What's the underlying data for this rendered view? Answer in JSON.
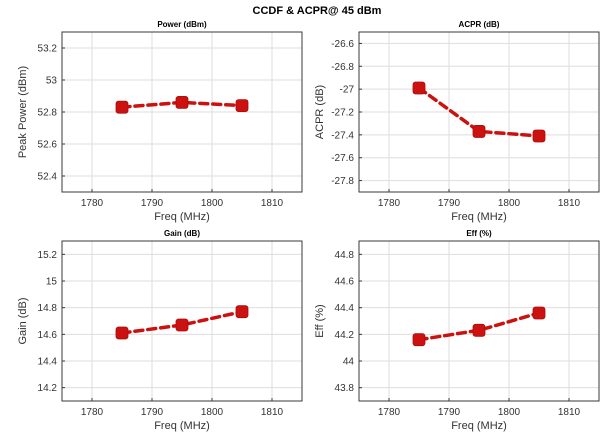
{
  "figure": {
    "title": "CCDF & ACPR@ 45 dBm"
  },
  "chart_data": [
    {
      "type": "line",
      "title": "Power (dBm)",
      "xlabel": "Freq (MHz)",
      "ylabel": "Peak Power (dBm)",
      "xlim": [
        1775,
        1815
      ],
      "ylim": [
        52.3,
        53.3
      ],
      "xticks": [
        1780,
        1790,
        1800,
        1810
      ],
      "xtick_labels": [
        "1780",
        "1790",
        "1800",
        "1810"
      ],
      "yticks": [
        52.4,
        52.6,
        52.8,
        53,
        53.2
      ],
      "ytick_labels": [
        "52.4",
        "52.6",
        "52.8",
        "53",
        "53.2"
      ],
      "grid": true,
      "color": "#cc1111",
      "x": [
        1785,
        1795,
        1805
      ],
      "y": [
        52.83,
        52.86,
        52.84
      ]
    },
    {
      "type": "line",
      "title": "ACPR (dB)",
      "xlabel": "Freq (MHz)",
      "ylabel": "ACPR (dB)",
      "xlim": [
        1775,
        1815
      ],
      "ylim": [
        -27.9,
        -26.5
      ],
      "xticks": [
        1780,
        1790,
        1800,
        1810
      ],
      "xtick_labels": [
        "1780",
        "1790",
        "1800",
        "1810"
      ],
      "yticks": [
        -27.8,
        -27.6,
        -27.4,
        -27.2,
        -27,
        -26.8,
        -26.6
      ],
      "ytick_labels": [
        "-27.8",
        "-27.6",
        "-27.4",
        "-27.2",
        "-27",
        "-26.8",
        "-26.6"
      ],
      "grid": true,
      "color": "#cc1111",
      "x": [
        1785,
        1795,
        1805
      ],
      "y": [
        -26.99,
        -27.37,
        -27.41
      ]
    },
    {
      "type": "line",
      "title": "Gain (dB)",
      "xlabel": "Freq (MHz)",
      "ylabel": "Gain (dB)",
      "xlim": [
        1775,
        1815
      ],
      "ylim": [
        14.1,
        15.3
      ],
      "xticks": [
        1780,
        1790,
        1800,
        1810
      ],
      "xtick_labels": [
        "1780",
        "1790",
        "1800",
        "1810"
      ],
      "yticks": [
        14.2,
        14.4,
        14.6,
        14.8,
        15,
        15.2
      ],
      "ytick_labels": [
        "14.2",
        "14.4",
        "14.6",
        "14.8",
        "15",
        "15.2"
      ],
      "grid": true,
      "color": "#cc1111",
      "x": [
        1785,
        1795,
        1805
      ],
      "y": [
        14.61,
        14.67,
        14.77
      ]
    },
    {
      "type": "line",
      "title": "Eff (%)",
      "xlabel": "Freq (MHz)",
      "ylabel": "Eff (%)",
      "xlim": [
        1775,
        1815
      ],
      "ylim": [
        43.7,
        44.9
      ],
      "xticks": [
        1780,
        1790,
        1800,
        1810
      ],
      "xtick_labels": [
        "1780",
        "1790",
        "1800",
        "1810"
      ],
      "yticks": [
        43.8,
        44,
        44.2,
        44.4,
        44.6,
        44.8
      ],
      "ytick_labels": [
        "43.8",
        "44",
        "44.2",
        "44.4",
        "44.6",
        "44.8"
      ],
      "grid": true,
      "color": "#cc1111",
      "x": [
        1785,
        1795,
        1805
      ],
      "y": [
        44.16,
        44.23,
        44.36
      ]
    }
  ]
}
